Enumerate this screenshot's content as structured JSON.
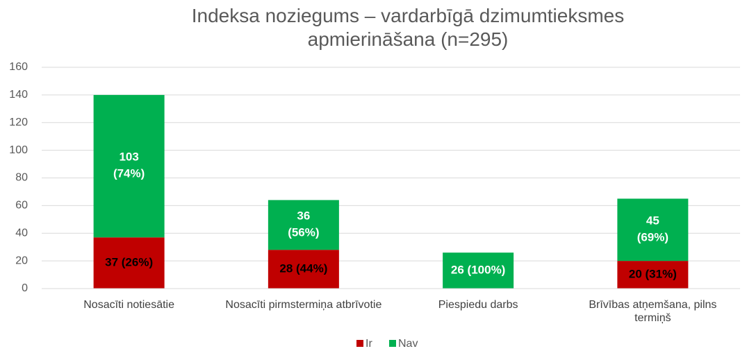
{
  "chart_data": {
    "type": "stacked_bar",
    "title": "Indeksa noziegums – vardarbīgā dzimumtieksmes apmierināšana (n=295)",
    "categories": [
      "Nosacīti notiesātie",
      "Nosacīti pirmstermiņa atbrīvotie",
      "Piespiedu darbs",
      "Brīvības atņemšana, pilns termiņš"
    ],
    "series": [
      {
        "name": "Ir",
        "color": "#c00000",
        "label_color": "#000000",
        "values": [
          37,
          28,
          0,
          20
        ],
        "value_labels": [
          "37 (26%)",
          "28 (44%)",
          null,
          "20 (31%)"
        ]
      },
      {
        "name": "Nav",
        "color": "#00b050",
        "label_color": "#ffffff",
        "values": [
          103,
          36,
          26,
          45
        ],
        "value_labels": [
          "103 (74%)",
          "36 (56%)",
          "26 (100%)",
          "45 (69%)"
        ]
      }
    ],
    "ylim": [
      0,
      160
    ],
    "yticks": [
      0,
      20,
      40,
      60,
      80,
      100,
      120,
      140,
      160
    ],
    "grid": true,
    "legend": "bottom"
  }
}
